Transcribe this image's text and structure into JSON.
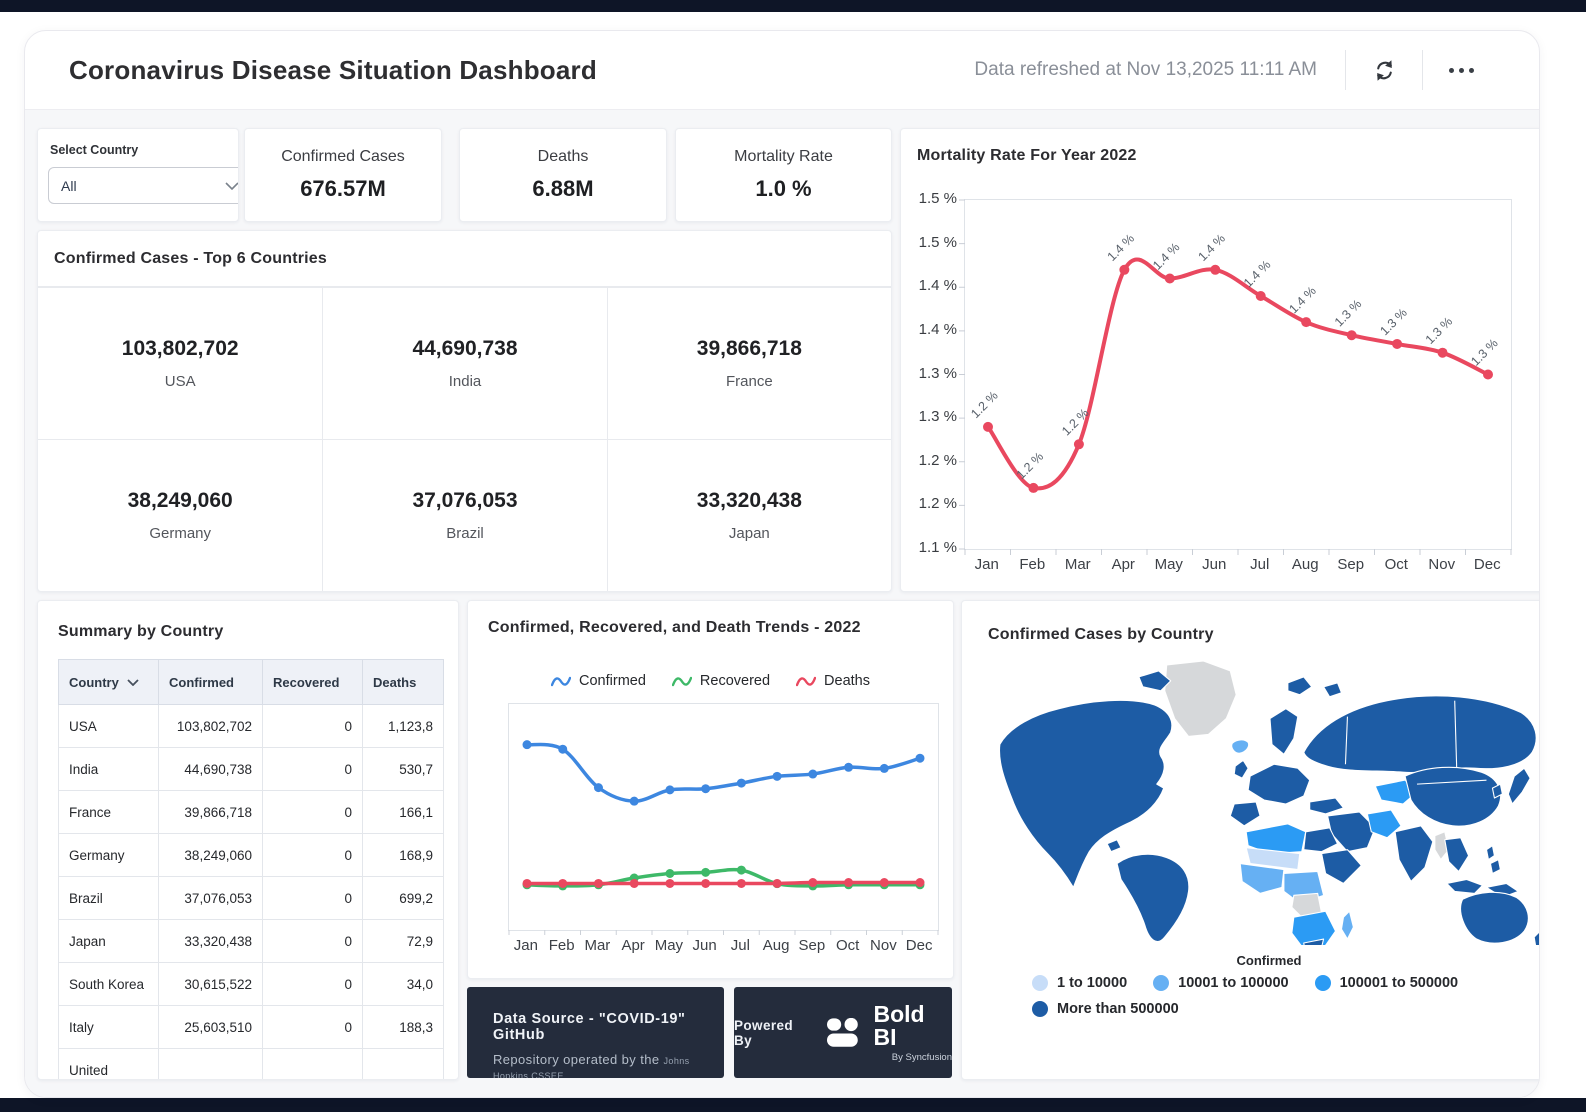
{
  "header": {
    "title": "Coronavirus Disease Situation Dashboard",
    "refreshed_text": "Data refreshed at Nov 13,2025 11:11 AM"
  },
  "filter": {
    "label": "Select Country",
    "value": "All"
  },
  "kpis": [
    {
      "label": "Confirmed Cases",
      "value": "676.57M"
    },
    {
      "label": "Deaths",
      "value": "6.88M"
    },
    {
      "label": "Mortality Rate",
      "value": "1.0 %"
    }
  ],
  "top6": {
    "title": "Confirmed Cases - Top 6 Countries",
    "items": [
      {
        "value": "103,802,702",
        "country": "USA"
      },
      {
        "value": "44,690,738",
        "country": "India"
      },
      {
        "value": "39,866,718",
        "country": "France"
      },
      {
        "value": "38,249,060",
        "country": "Germany"
      },
      {
        "value": "37,076,053",
        "country": "Brazil"
      },
      {
        "value": "33,320,438",
        "country": "Japan"
      }
    ]
  },
  "summary_table": {
    "title": "Summary by Country",
    "columns": [
      "Country",
      "Confirmed",
      "Recovered",
      "Deaths"
    ],
    "rows": [
      [
        "USA",
        "103,802,702",
        "0",
        "1,123,8"
      ],
      [
        "India",
        "44,690,738",
        "0",
        "530,7"
      ],
      [
        "France",
        "39,866,718",
        "0",
        "166,1"
      ],
      [
        "Germany",
        "38,249,060",
        "0",
        "168,9"
      ],
      [
        "Brazil",
        "37,076,053",
        "0",
        "699,2"
      ],
      [
        "Japan",
        "33,320,438",
        "0",
        "72,9"
      ],
      [
        "South Korea",
        "30,615,522",
        "0",
        "34,0"
      ],
      [
        "Italy",
        "25,603,510",
        "0",
        "188,3"
      ],
      [
        "United",
        "",
        "",
        ""
      ]
    ]
  },
  "chart_data": [
    {
      "type": "line",
      "title": "Mortality Rate For Year 2022",
      "x": [
        "Jan",
        "Feb",
        "Mar",
        "Apr",
        "May",
        "Jun",
        "Jul",
        "Aug",
        "Sep",
        "Oct",
        "Nov",
        "Dec"
      ],
      "values": [
        1.24,
        1.17,
        1.22,
        1.42,
        1.41,
        1.42,
        1.39,
        1.36,
        1.345,
        1.335,
        1.325,
        1.3
      ],
      "point_labels": [
        "1.2 %",
        "1.2 %",
        "1.2 %",
        "1.4 %",
        "1.4 %",
        "1.4 %",
        "1.4 %",
        "1.4 %",
        "1.3 %",
        "1.3 %",
        "1.3 %",
        "1.3 %"
      ],
      "ytick_labels": [
        "1.5 %",
        "1.5 %",
        "1.4 %",
        "1.4 %",
        "1.3 %",
        "1.3 %",
        "1.2 %",
        "1.2 %",
        "1.1 %"
      ],
      "ylim": [
        1.1,
        1.5
      ],
      "ylabel": "",
      "xlabel": "",
      "grid": false,
      "line_color": "#e9485f",
      "label_color": "#59616b"
    },
    {
      "type": "line",
      "title": "Confirmed, Recovered, and Death Trends - 2022",
      "x": [
        "Jan",
        "Feb",
        "Mar",
        "Apr",
        "May",
        "Jun",
        "Jul",
        "Aug",
        "Sep",
        "Oct",
        "Nov",
        "Dec"
      ],
      "series": [
        {
          "name": "Confirmed",
          "color": "#3d87e0",
          "values": [
            82,
            80,
            63,
            57,
            62,
            62.5,
            65,
            68,
            69,
            72,
            71.5,
            76
          ]
        },
        {
          "name": "Recovered",
          "color": "#3eb968",
          "values": [
            20,
            19.5,
            20,
            23,
            25,
            25.5,
            26.5,
            20.5,
            19.5,
            20,
            20,
            20
          ]
        },
        {
          "name": "Deaths",
          "color": "#e9485f",
          "values": [
            20.6,
            20.6,
            20.6,
            20.6,
            20.6,
            20.6,
            20.6,
            20.6,
            21,
            21,
            21,
            21
          ]
        }
      ],
      "note": "y-axis has no tick labels in the source; series values are relative heights (0-100) read from the plot",
      "legend_position": "top",
      "grid": false
    },
    {
      "type": "choropleth",
      "title": "Confirmed Cases by Country",
      "legend_title": "Confirmed",
      "classes": [
        {
          "label": "1 to 10000",
          "color": "#c7ddf8"
        },
        {
          "label": "10001 to 100000",
          "color": "#66b0f3"
        },
        {
          "label": "100001 to 500000",
          "color": "#2b9bf4"
        },
        {
          "label": "More than 500000",
          "color": "#1d5ca5"
        }
      ],
      "no_data_color": "#d6d8da"
    }
  ],
  "footer": {
    "source_line1": "Data Source - \"COVID-19\" GitHub",
    "source_line2": "Repository operated by the",
    "source_line2_small": "Johns Hopkins CSSEE",
    "powered_by": "Powered By",
    "brand": "Bold BI",
    "brand_sub": "By Syncfusion"
  }
}
